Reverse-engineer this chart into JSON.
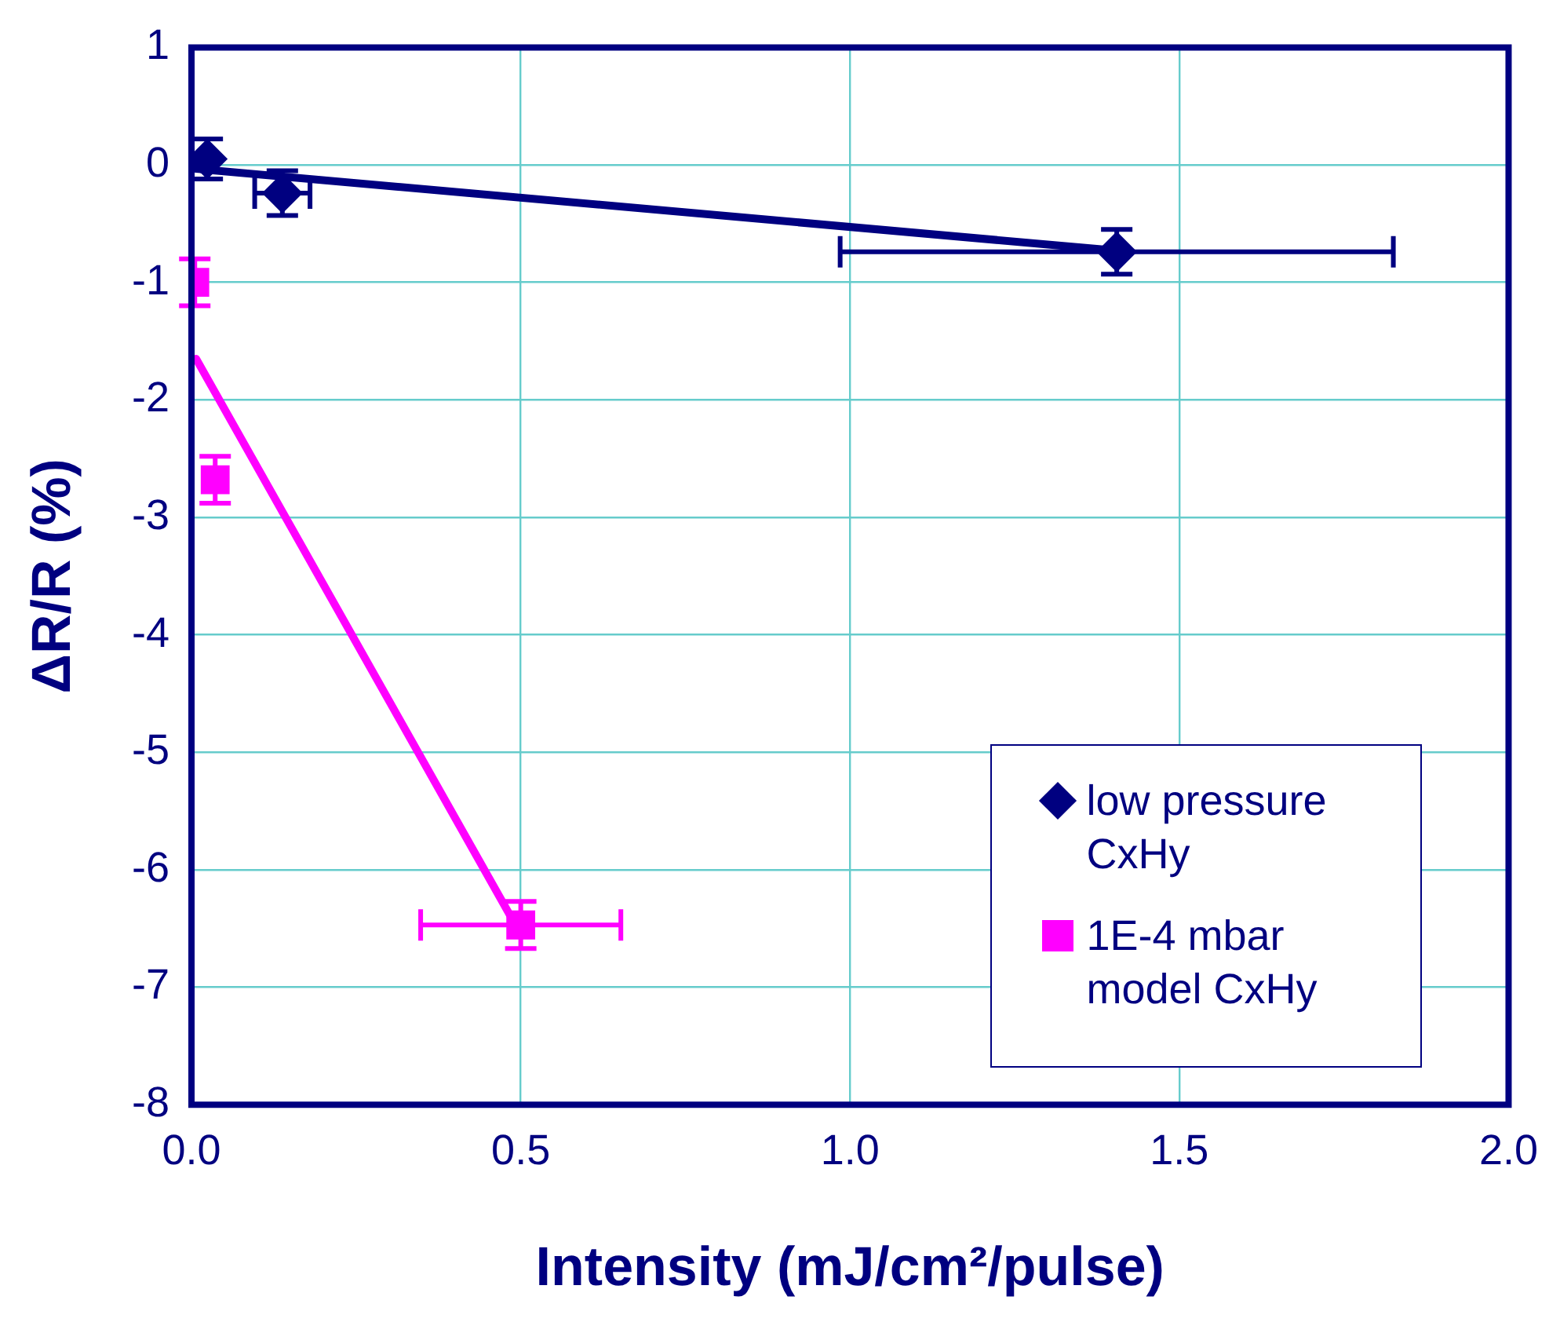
{
  "chart_data": {
    "type": "scatter",
    "xlabel": "Intensity (mJ/cm²/pulse)",
    "ylabel": "ΔR/R (%)",
    "xlim": [
      0,
      2
    ],
    "xticks": [
      {
        "value": 0,
        "label": "0.0"
      },
      {
        "value": 0.5,
        "label": "0.5"
      },
      {
        "value": 1,
        "label": "1.0"
      },
      {
        "value": 1.5,
        "label": "1.5"
      },
      {
        "value": 2,
        "label": "2.0"
      }
    ],
    "ylim": [
      -8,
      1
    ],
    "yticks": [
      -8,
      -7,
      -6,
      -5,
      -4,
      -3,
      -2,
      -1,
      0,
      1
    ],
    "grid": true,
    "legend": "bottom right",
    "series": [
      {
        "type": "line",
        "color": "#000080",
        "x": [
          0,
          1.405
        ],
        "values": [
          -0.03,
          -0.73
        ],
        "marker": "none"
      },
      {
        "type": "line",
        "color": "#ff00ff",
        "x": [
          0.007,
          0.49
        ],
        "values": [
          -1.65,
          -6.45
        ],
        "marker": "none"
      },
      {
        "name": "low pressure CxHy",
        "color": "#000080",
        "marker": "diamond",
        "x": [
          0.024,
          0.138,
          1.405
        ],
        "values": [
          0.05,
          -0.24,
          -0.74
        ],
        "errors": [
          0.17,
          0.19,
          0.19
        ],
        "xerrors": [
          null,
          0.042,
          0.42
        ]
      },
      {
        "name": "1E-4 mbar model CxHy",
        "color": "#ff00ff",
        "marker": "square",
        "x": [
          0.005,
          0.036,
          0.5
        ],
        "values": [
          -1.0,
          -2.68,
          -6.47
        ],
        "errors": [
          0.2,
          0.2,
          0.2
        ],
        "xerrors": [
          null,
          null,
          0.152
        ]
      }
    ]
  }
}
